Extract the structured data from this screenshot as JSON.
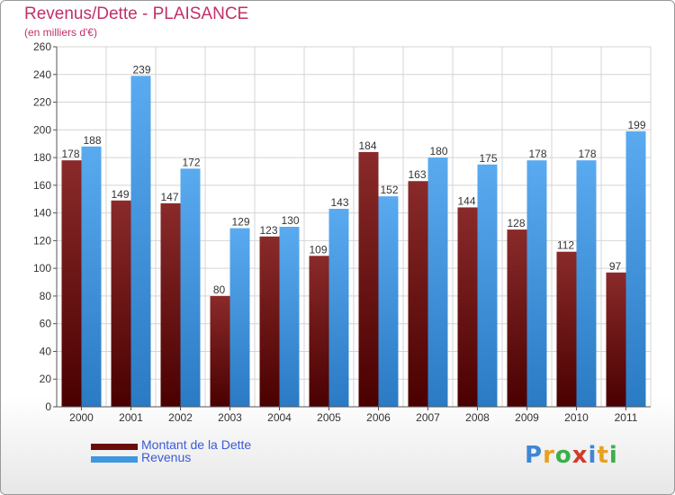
{
  "title": "Revenus/Dette - PLAISANCE",
  "subtitle": "(en milliers d'€)",
  "logo": {
    "letters": [
      "P",
      "r",
      "o",
      "x",
      "i",
      "t",
      "i"
    ],
    "colors": [
      "#3f86d6",
      "#e8a020",
      "#3ab04a",
      "#d23a2a",
      "#3f86d6",
      "#e8a020",
      "#3ab04a"
    ]
  },
  "colors": {
    "dette": "#7a1010",
    "revenus": "#3f97e0",
    "title": "#c0306a"
  },
  "chart_data": {
    "type": "bar",
    "categories": [
      "2000",
      "2001",
      "2002",
      "2003",
      "2004",
      "2005",
      "2006",
      "2007",
      "2008",
      "2009",
      "2010",
      "2011"
    ],
    "series": [
      {
        "name": "Montant de la Dette",
        "values": [
          178,
          149,
          147,
          80,
          123,
          109,
          184,
          163,
          144,
          128,
          112,
          97
        ]
      },
      {
        "name": "Revenus",
        "values": [
          188,
          239,
          172,
          129,
          130,
          143,
          152,
          180,
          175,
          178,
          178,
          199
        ]
      }
    ],
    "yticks": [
      0,
      20,
      40,
      60,
      80,
      100,
      120,
      140,
      160,
      180,
      200,
      220,
      240,
      260
    ],
    "ylim": [
      0,
      260
    ],
    "grid": true,
    "legend": "bottom-left"
  }
}
